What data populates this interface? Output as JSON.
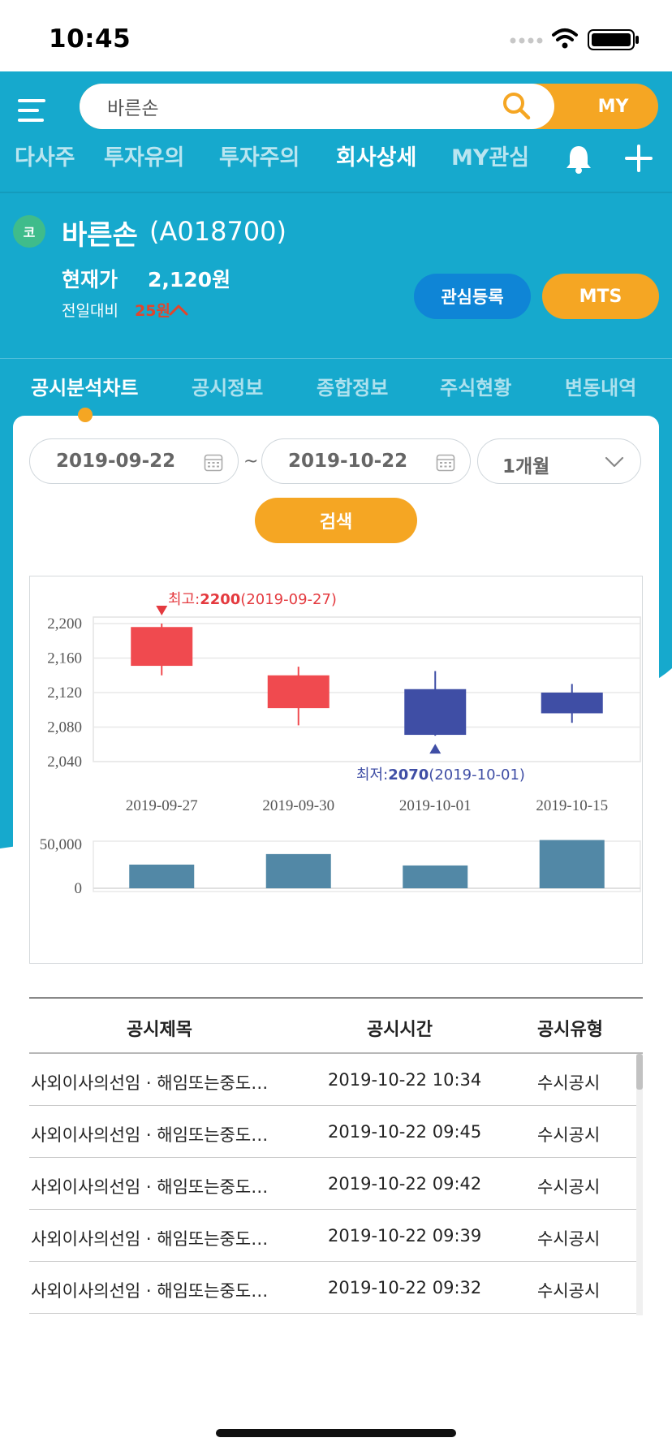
{
  "status_bar": {
    "time": "10:45"
  },
  "search": {
    "value": "바른손",
    "my_label": "MY"
  },
  "top_tabs": [
    {
      "label": "다사주"
    },
    {
      "label": "투자유의"
    },
    {
      "label": "투자주의"
    },
    {
      "label": "회사상세"
    },
    {
      "label": "MY관심"
    }
  ],
  "stock": {
    "market_badge": "코",
    "name": "바른손",
    "code": "(A018700)",
    "price_label": "현재가",
    "price": "2,120원",
    "change_label": "전일대비",
    "change_value": "25원",
    "interest_button": "관심등록",
    "mts_button": "MTS"
  },
  "section_tabs": [
    {
      "label": "공시분석차트"
    },
    {
      "label": "공시정보"
    },
    {
      "label": "종합정보"
    },
    {
      "label": "주식현황"
    },
    {
      "label": "변동내역"
    }
  ],
  "filters": {
    "start_date": "2019-09-22",
    "end_date": "2019-10-22",
    "separator": "~",
    "period": "1개월",
    "search_button": "검색"
  },
  "chart_data": {
    "type": "candlestick",
    "categories": [
      "2019-09-27",
      "2019-09-30",
      "2019-10-01",
      "2019-10-15"
    ],
    "series": [
      {
        "name": "price",
        "ohlc": [
          {
            "open": 2151,
            "high": 2200,
            "low": 2140,
            "close": 2196,
            "color": "#f04a4f"
          },
          {
            "open": 2102,
            "high": 2150,
            "low": 2082,
            "close": 2140,
            "color": "#f04a4f"
          },
          {
            "open": 2124,
            "high": 2145,
            "low": 2070,
            "close": 2071,
            "color": "#3f4ea5"
          },
          {
            "open": 2120,
            "high": 2130,
            "low": 2085,
            "close": 2096,
            "color": "#3f4ea5"
          }
        ]
      },
      {
        "name": "volume",
        "values": [
          27000,
          39000,
          26000,
          55000
        ],
        "color": "#5288a6"
      }
    ],
    "yticks": [
      "2,200",
      "2,160",
      "2,120",
      "2,080",
      "2,040"
    ],
    "ylim": [
      2040,
      2200
    ],
    "volume_ticks": [
      "50,000",
      "0"
    ],
    "volume_ylim": [
      0,
      50000
    ],
    "high_annotation": {
      "prefix": "최고:",
      "value": "2200",
      "date": "(2019-09-27)"
    },
    "low_annotation": {
      "prefix": "최저:",
      "value": "2070",
      "date": "(2019-10-01)"
    },
    "grid": true
  },
  "table": {
    "headers": [
      "공시제목",
      "공시시간",
      "공시유형"
    ],
    "rows": [
      {
        "title": "사외이사의선임 · 해임또는중도퇴임",
        "time": "2019-10-22 10:34",
        "type": "수시공시"
      },
      {
        "title": "사외이사의선임 · 해임또는중도퇴임",
        "time": "2019-10-22 09:45",
        "type": "수시공시"
      },
      {
        "title": "사외이사의선임 · 해임또는중도퇴임",
        "time": "2019-10-22 09:42",
        "type": "수시공시"
      },
      {
        "title": "사외이사의선임 · 해임또는중도퇴임",
        "time": "2019-10-22 09:39",
        "type": "수시공시"
      },
      {
        "title": "사외이사의선임 · 해임또는중도퇴임",
        "time": "2019-10-22 09:32",
        "type": "수시공시"
      }
    ]
  },
  "colors": {
    "brand_teal": "#16a9cd",
    "accent_orange": "#f5a623",
    "button_blue": "#0f85d6",
    "up_red": "#e2452c"
  }
}
